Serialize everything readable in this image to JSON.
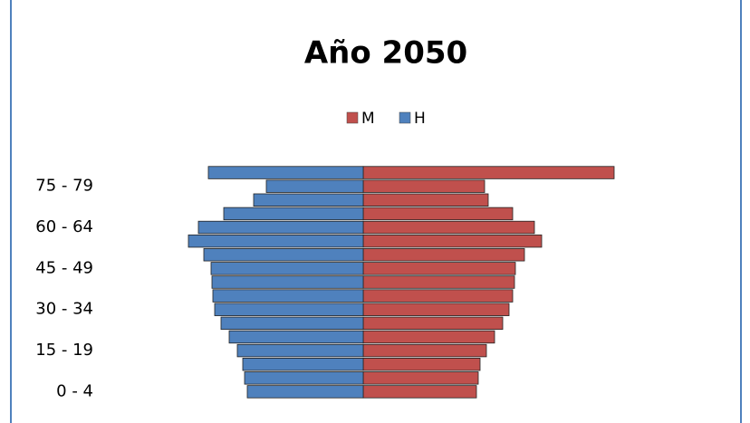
{
  "chart_data": {
    "type": "pyramid",
    "title": "Año 2050",
    "categories": [
      "0 - 4",
      null,
      null,
      "15 - 19",
      null,
      null,
      "30 - 34",
      null,
      null,
      "45 - 49",
      null,
      null,
      "60 - 64",
      null,
      null,
      "75 - 79",
      null
    ],
    "series": [
      {
        "name": "M",
        "color": "#c0504d",
        "side": "right",
        "values": [
          125,
          127,
          129,
          136,
          145,
          154,
          161,
          165,
          167,
          168,
          178,
          197,
          189,
          165,
          138,
          134,
          277
        ]
      },
      {
        "name": "H",
        "color": "#4f81bd",
        "side": "left",
        "values": [
          128,
          131,
          133,
          139,
          148,
          157,
          164,
          166,
          167,
          168,
          176,
          193,
          182,
          154,
          121,
          107,
          171
        ]
      }
    ],
    "xlim": [
      -200,
      280
    ],
    "legend": "top"
  }
}
